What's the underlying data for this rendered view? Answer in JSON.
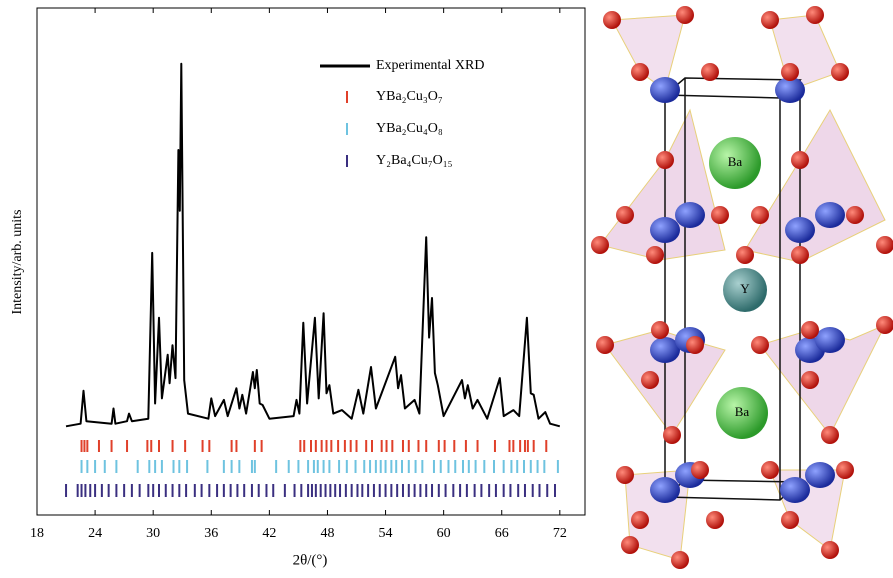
{
  "chart_data": {
    "type": "line",
    "xlabel": "2θ/(°)",
    "ylabel": "Intensity/arb. units",
    "xlim": [
      18,
      74.6
    ],
    "ylim": [
      0,
      100
    ],
    "xticks": [
      18,
      24,
      30,
      36,
      42,
      48,
      54,
      60,
      66,
      72
    ],
    "series": [
      {
        "name": "Experimental XRD",
        "color": "#000000",
        "x": [
          21,
          22.5,
          22.8,
          23.1,
          25.7,
          25.9,
          26.1,
          27.3,
          27.5,
          27.8,
          29.5,
          29.9,
          30.2,
          30.6,
          30.9,
          31.5,
          31.7,
          32.0,
          32.3,
          32.6,
          32.75,
          32.9,
          33.2,
          33.6,
          35.7,
          36.0,
          36.4,
          37.3,
          37.7,
          38.6,
          38.9,
          39.2,
          39.6,
          40.3,
          40.5,
          40.7,
          41.0,
          41.3,
          42.0,
          44.5,
          44.8,
          45.1,
          45.5,
          45.9,
          46.7,
          47.1,
          47.6,
          47.9,
          48.2,
          48.6,
          49.5,
          50.5,
          51.2,
          51.7,
          52.5,
          53.0,
          55.0,
          55.3,
          55.6,
          56.0,
          57.0,
          57.5,
          58.2,
          58.5,
          58.8,
          59.1,
          59.4,
          60.0,
          61.9,
          62.2,
          62.5,
          63.0,
          63.5,
          64.5,
          65.8,
          66.2,
          67.2,
          67.8,
          68.6,
          69.0,
          69.3,
          69.8,
          70.5,
          71.0,
          72
        ],
        "values": [
          17.5,
          18,
          24.5,
          18.5,
          18,
          21,
          18,
          18.5,
          20,
          18.5,
          19,
          51.7,
          22,
          38.9,
          23,
          31.6,
          26,
          33.5,
          27,
          72,
          60,
          89,
          26.6,
          20,
          19,
          23,
          19.5,
          22.7,
          19.5,
          25,
          21,
          23.7,
          20,
          28.2,
          25,
          28.6,
          22,
          21.7,
          19,
          19.5,
          22.7,
          20,
          37.9,
          22,
          38.9,
          23,
          39.8,
          24,
          25.6,
          20,
          20.7,
          19,
          24.7,
          20,
          29.2,
          21,
          31.2,
          25,
          27.6,
          21,
          22.7,
          20,
          54.8,
          35,
          42.8,
          28,
          25.6,
          19.5,
          26.6,
          23,
          25.6,
          21,
          22.7,
          19,
          27,
          19.5,
          20.7,
          19.5,
          38.9,
          24,
          23.7,
          19,
          20.3,
          18,
          17.5
        ]
      },
      {
        "name": "YBa₂Cu₃O₇",
        "color": "#e0402a",
        "x": [
          22.6,
          22.9,
          23.2,
          24.4,
          25.7,
          27.3,
          29.4,
          29.8,
          30.6,
          32.0,
          33.3,
          35.1,
          35.8,
          38.1,
          38.6,
          40.5,
          41.2,
          45.2,
          45.6,
          46.3,
          46.8,
          47.4,
          47.9,
          48.4,
          49.1,
          49.8,
          50.4,
          51.0,
          52.0,
          52.6,
          53.6,
          54.1,
          54.7,
          55.8,
          56.4,
          57.4,
          58.2,
          59.5,
          60.1,
          61.1,
          62.3,
          63.5,
          65.3,
          66.8,
          67.2,
          67.9,
          68.4,
          68.7,
          69.3,
          70.6
        ]
      },
      {
        "name": "YBa₂Cu₄O₈",
        "color": "#6ec3e0",
        "x": [
          22.6,
          23.2,
          24.0,
          25.0,
          26.2,
          28.4,
          29.6,
          30.2,
          30.9,
          32.1,
          32.7,
          33.5,
          35.6,
          37.3,
          38.1,
          38.9,
          40.2,
          40.5,
          42.7,
          44.0,
          45.0,
          46.0,
          46.6,
          47.0,
          47.6,
          48.2,
          49.2,
          50.0,
          50.9,
          51.8,
          52.4,
          53.0,
          53.5,
          54.0,
          54.6,
          55.1,
          55.7,
          56.4,
          57.1,
          57.8,
          59.0,
          59.7,
          60.5,
          61.2,
          62.0,
          62.6,
          63.3,
          64.2,
          65.2,
          66.2,
          67.0,
          67.6,
          68.3,
          69.0,
          69.7,
          70.4,
          71.8
        ]
      },
      {
        "name": "Y₂Ba₄Cu₇O₁₅",
        "color": "#3a2f80",
        "x": [
          21.0,
          22.2,
          22.6,
          23.0,
          23.5,
          24.0,
          24.7,
          25.4,
          26.2,
          27.0,
          27.8,
          28.6,
          29.5,
          30.0,
          30.6,
          31.3,
          32.0,
          32.7,
          33.4,
          34.3,
          35.0,
          35.8,
          36.6,
          37.3,
          38.0,
          38.7,
          39.4,
          40.2,
          40.9,
          41.7,
          42.4,
          43.6,
          44.6,
          45.3,
          46.0,
          46.4,
          46.8,
          47.3,
          47.8,
          48.3,
          48.8,
          49.3,
          49.9,
          50.5,
          51.1,
          51.6,
          52.2,
          52.8,
          53.4,
          54.0,
          54.6,
          55.2,
          55.8,
          56.4,
          57.0,
          57.6,
          58.2,
          58.8,
          59.5,
          60.2,
          61.0,
          61.7,
          62.4,
          63.2,
          63.9,
          64.7,
          65.4,
          66.2,
          66.9,
          67.7,
          68.4,
          69.2,
          69.9,
          70.7,
          71.5
        ]
      }
    ]
  },
  "structure": {
    "atoms": [
      "Ba",
      "Y",
      "Ba"
    ]
  }
}
